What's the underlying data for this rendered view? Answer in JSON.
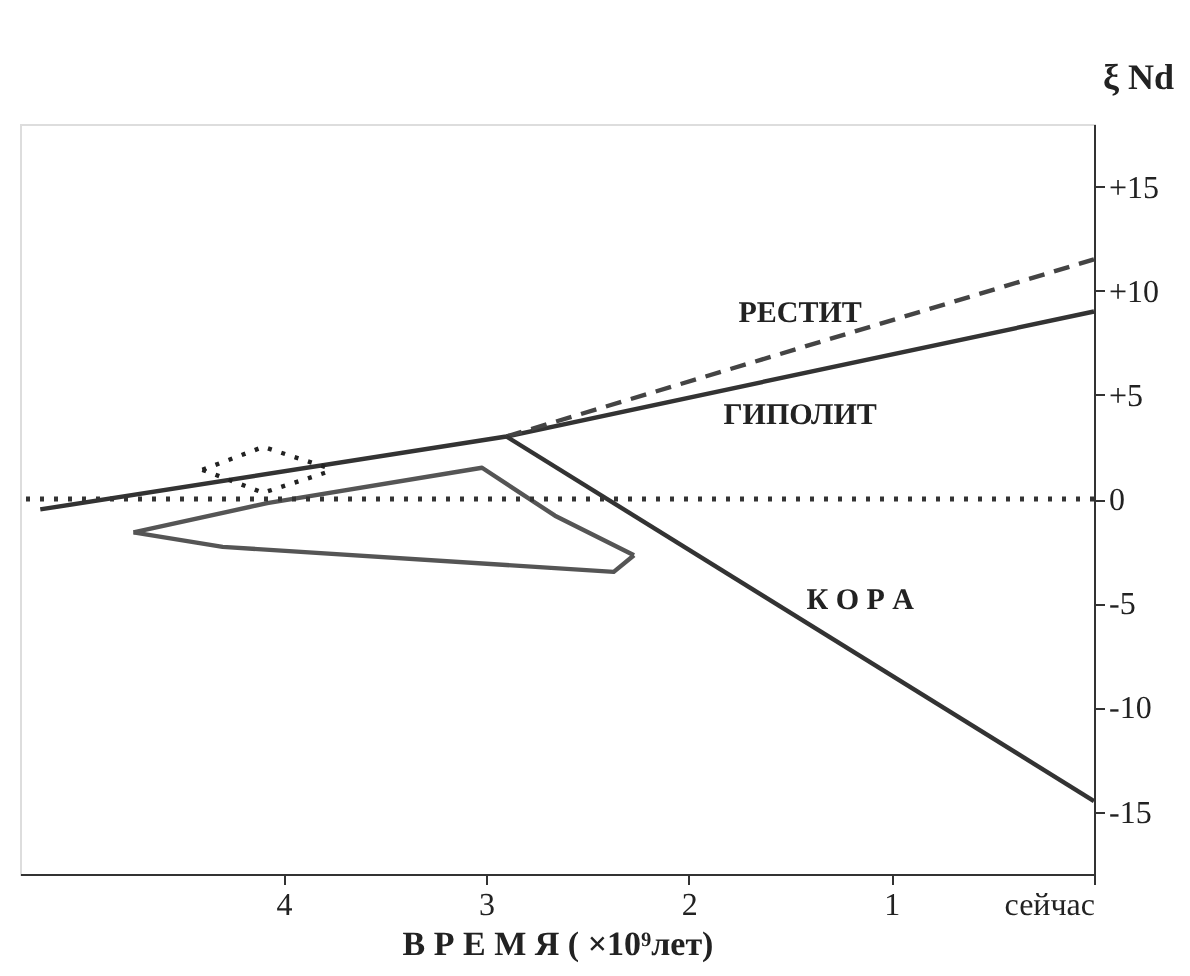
{
  "chart_data": {
    "type": "line",
    "xlabel": "В Р Е М Я ( ×10⁹лет)",
    "ylabel": "ξ Nd",
    "xlim": [
      5.3,
      0
    ],
    "xticks": [
      4,
      3,
      2,
      1,
      {
        "value": 0,
        "label": "сейчас"
      }
    ],
    "ylim": [
      -18,
      18
    ],
    "yticks": [
      {
        "value": 15,
        "label": "+15"
      },
      {
        "value": 10,
        "label": "+10"
      },
      {
        "value": 5,
        "label": "+5"
      },
      0,
      -5,
      -10,
      -15
    ],
    "grid": false,
    "marker": "none",
    "series": [
      {
        "name": "ГИПОЛИТ",
        "color": "#333333",
        "line_style": "solid",
        "x": [
          5.2,
          2.9,
          0
        ],
        "values": [
          -0.5,
          3,
          9
        ]
      },
      {
        "name": "РЕСТИТ",
        "color": "#444444",
        "line_style": "dashed",
        "x": [
          2.9,
          0
        ],
        "values": [
          3,
          11.5
        ]
      },
      {
        "name": "К О Р А",
        "color": "#333333",
        "line_style": "solid",
        "x": [
          2.9,
          0
        ],
        "values": [
          3,
          -14.5
        ]
      },
      {
        "color": "#555555",
        "line_style": "solid",
        "x": [
          4.74,
          4.08,
          3.02,
          2.66,
          2.27
        ],
        "values": [
          -1.6,
          -0.2,
          1.5,
          -0.8,
          -2.7
        ]
      },
      {
        "color": "#555555",
        "line_style": "solid",
        "x": [
          4.74,
          4.3,
          2.37,
          2.27
        ],
        "values": [
          -1.6,
          -2.3,
          -3.5,
          -2.7
        ]
      },
      {
        "color": "#222222",
        "line_style": "dotted",
        "x": [
          4.4,
          4.1,
          3.75
        ],
        "values": [
          1.4,
          2.5,
          1.4
        ]
      },
      {
        "color": "#222222",
        "line_style": "dotted",
        "x": [
          4.4,
          4.1,
          3.75
        ],
        "values": [
          1.4,
          0.3,
          1.4
        ]
      }
    ],
    "ref_lines": [
      {
        "axis": "y",
        "value": 0,
        "color": "#333333",
        "line_style": "dotted"
      }
    ]
  }
}
